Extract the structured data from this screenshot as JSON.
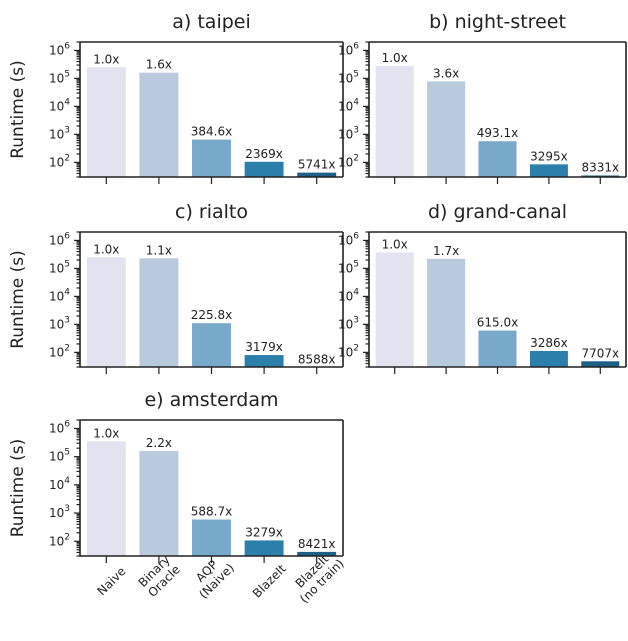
{
  "chart_data": [
    {
      "type": "bar",
      "title": "a) taipei",
      "ylabel": "Runtime (s)",
      "yscale": "log",
      "ylim": [
        30,
        2000000
      ],
      "yticks": [
        "10^2",
        "10^3",
        "10^4",
        "10^5",
        "10^6"
      ],
      "categories": [
        "Naive",
        "Binary Oracle",
        "AQP (Naive)",
        "BlazeIt",
        "BlazeIt (no train)"
      ],
      "values": [
        250000,
        160000,
        650,
        105,
        43
      ],
      "labels": [
        "1.0x",
        "1.6x",
        "384.6x",
        "2369x",
        "5741x"
      ]
    },
    {
      "type": "bar",
      "title": "b) night-street",
      "ylabel": "",
      "yscale": "log",
      "ylim": [
        30,
        2000000
      ],
      "yticks": [
        "10^2",
        "10^3",
        "10^4",
        "10^5",
        "10^6"
      ],
      "categories": [
        "Naive",
        "Binary Oracle",
        "AQP (Naive)",
        "BlazeIt",
        "BlazeIt (no train)"
      ],
      "values": [
        280000,
        78000,
        570,
        85,
        34
      ],
      "labels": [
        "1.0x",
        "3.6x",
        "493.1x",
        "3295x",
        "8331x"
      ]
    },
    {
      "type": "bar",
      "title": "c) rialto",
      "ylabel": "Runtime (s)",
      "yscale": "log",
      "ylim": [
        30,
        2000000
      ],
      "yticks": [
        "10^2",
        "10^3",
        "10^4",
        "10^5",
        "10^6"
      ],
      "categories": [
        "Naive",
        "Binary Oracle",
        "AQP (Naive)",
        "BlazeIt",
        "BlazeIt (no train)"
      ],
      "values": [
        250000,
        230000,
        1100,
        80,
        29
      ],
      "labels": [
        "1.0x",
        "1.1x",
        "225.8x",
        "3179x",
        "8588x"
      ]
    },
    {
      "type": "bar",
      "title": "d) grand-canal",
      "ylabel": "",
      "yscale": "log",
      "ylim": [
        30,
        2000000
      ],
      "yticks": [
        "10^2",
        "10^3",
        "10^4",
        "10^5",
        "10^6"
      ],
      "categories": [
        "Naive",
        "Binary Oracle",
        "AQP (Naive)",
        "BlazeIt",
        "BlazeIt (no train)"
      ],
      "values": [
        370000,
        220000,
        600,
        112,
        48
      ],
      "labels": [
        "1.0x",
        "1.7x",
        "615.0x",
        "3286x",
        "7707x"
      ]
    },
    {
      "type": "bar",
      "title": "e) amsterdam",
      "ylabel": "Runtime (s)",
      "yscale": "log",
      "ylim": [
        30,
        2000000
      ],
      "yticks": [
        "10^2",
        "10^3",
        "10^4",
        "10^5",
        "10^6"
      ],
      "categories": [
        "Naive",
        "Binary Oracle",
        "AQP (Naive)",
        "BlazeIt",
        "BlazeIt (no train)"
      ],
      "values": [
        350000,
        160000,
        590,
        107,
        42
      ],
      "labels": [
        "1.0x",
        "2.2x",
        "588.7x",
        "3279x",
        "8421x"
      ]
    }
  ],
  "x_tick_labels": [
    [
      "Naive"
    ],
    [
      "Binary",
      "Oracle"
    ],
    [
      "AQP",
      "(Naive)"
    ],
    [
      "BlazeIt"
    ],
    [
      "BlazeIt",
      "(no train)"
    ]
  ],
  "colors": [
    "#e2e2f0",
    "#b9c9de",
    "#78a9ca",
    "#2c7fab",
    "#1e5f88"
  ]
}
